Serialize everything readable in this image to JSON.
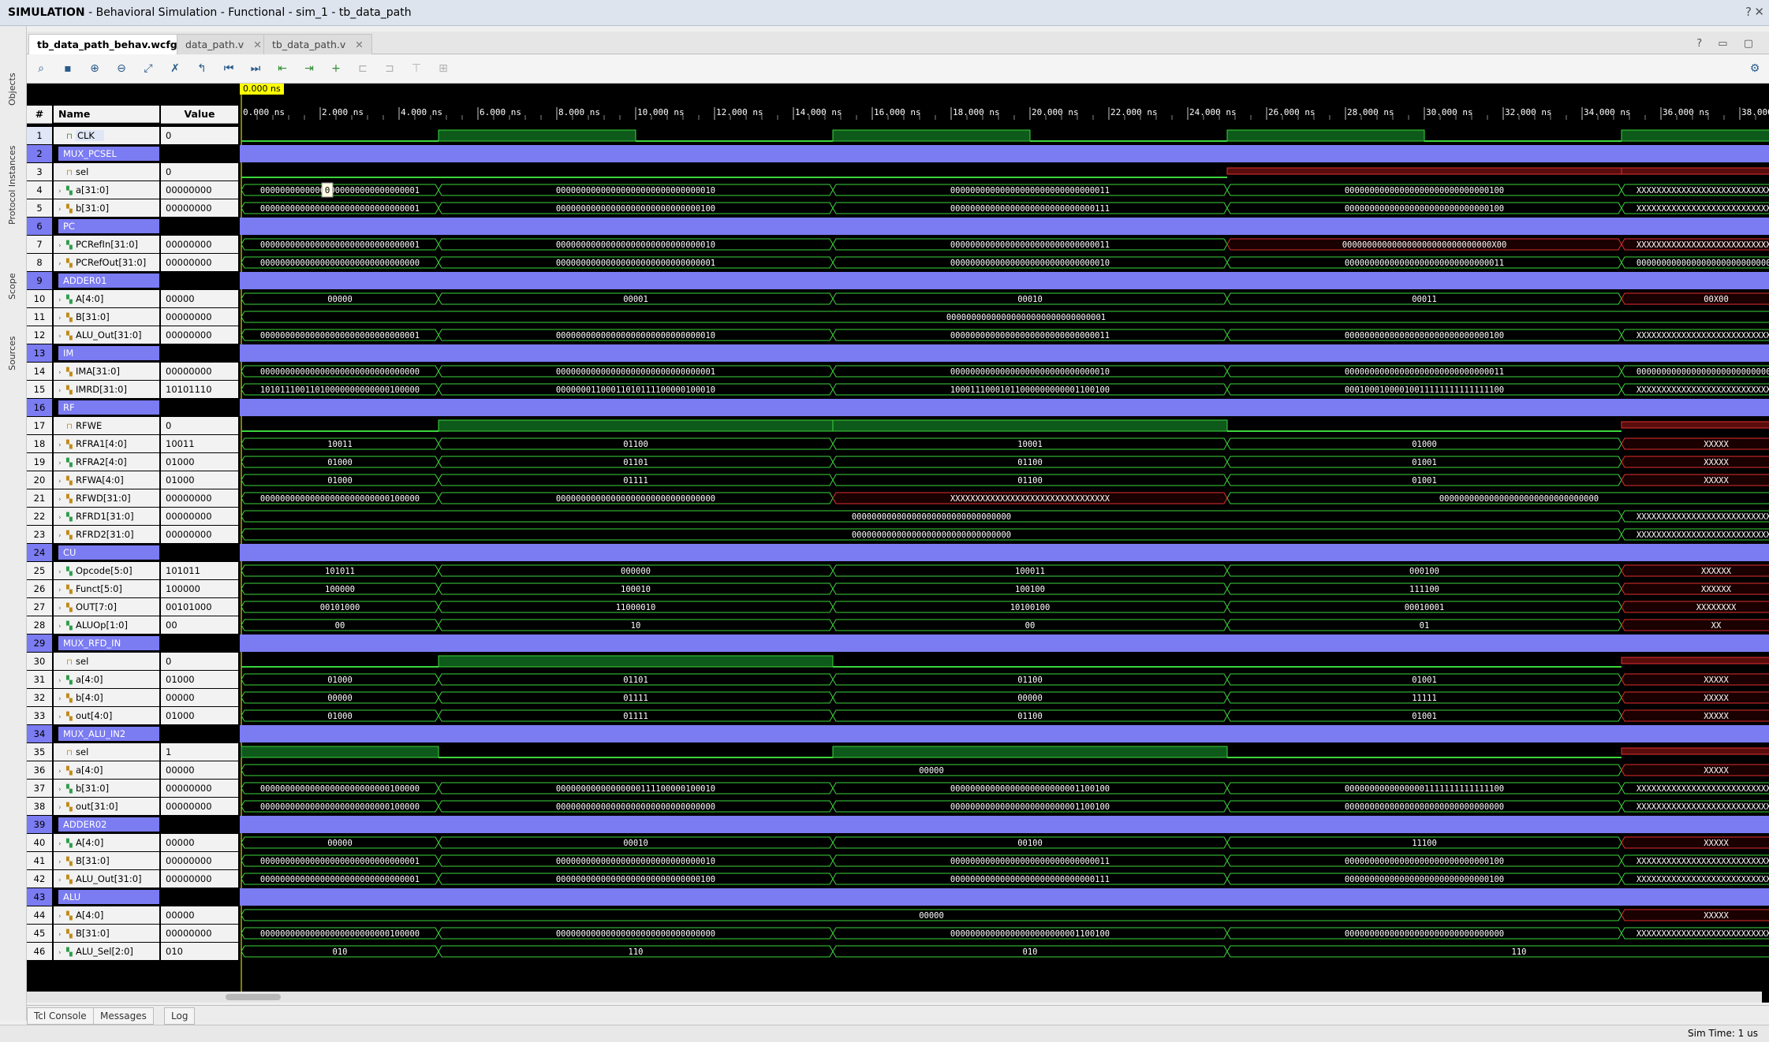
{
  "window": {
    "title_bold": "SIMULATION",
    "title_rest": " - Behavioral Simulation - Functional - sim_1 - tb_data_path",
    "help": "?",
    "close": "✕"
  },
  "sidebar": [
    "Objects",
    "Protocol Instances",
    "Scope",
    "Sources"
  ],
  "tabs": [
    {
      "label": "tb_data_path_behav.wcfg*",
      "active": true
    },
    {
      "label": "data_path.v",
      "active": false
    },
    {
      "label": "tb_data_path.v",
      "active": false
    }
  ],
  "tab_controls": "? ▭ ▢",
  "toolbar": {
    "icons": [
      "search-icon",
      "save-icon",
      "zoom-in-icon",
      "zoom-out-icon",
      "zoom-fit-icon",
      "cursor-swap-icon",
      "go-to-cursor-icon",
      "go-to-start-icon",
      "go-to-end-icon",
      "previous-transition-icon",
      "next-transition-icon",
      "add-marker-icon",
      "previous-marker-icon",
      "next-marker-icon",
      "swap-cursors-icon",
      "snap-icon"
    ],
    "gear": "⚙"
  },
  "headers": {
    "idx": "#",
    "name": "Name",
    "value": "Value"
  },
  "cursor_label": "0.000 ns",
  "timeline": {
    "ticks": [
      "0.000 ns",
      "2.000 ns",
      "4.000 ns",
      "6.000 ns",
      "8.000 ns",
      "10.000 ns",
      "12.000 ns",
      "14.000 ns",
      "16.000 ns",
      "18.000 ns",
      "20.000 ns",
      "22.000 ns",
      "24.000 ns",
      "26.000 ns",
      "28.000 ns",
      "30.000 ns",
      "32.000 ns",
      "34.000 ns",
      "36.000 ns",
      "38.000"
    ],
    "end_ns": 39,
    "period_ns": 20,
    "change_ns": [
      5,
      15,
      25,
      35
    ]
  },
  "tooltip": "0",
  "signals": [
    {
      "n": "1",
      "name": "CLK",
      "value": "0",
      "kind": "clk",
      "sel": true
    },
    {
      "n": "2",
      "name": "MUX_PCSEL",
      "value": "",
      "kind": "group"
    },
    {
      "n": "3",
      "name": "sel",
      "value": "0",
      "kind": "bit",
      "segs": [
        0,
        0,
        0,
        "r"
      ]
    },
    {
      "n": "4",
      "name": "a[31:0]",
      "value": "00000000",
      "kind": "bus",
      "segs": [
        "00000000000000000000000000000001",
        "00000000000000000000000000000010",
        "00000000000000000000000000000011",
        "00000000000000000000000000000100",
        "XXXXXXXXXXXXXXXXXXXXXXXXXXXXXXXX"
      ]
    },
    {
      "n": "5",
      "name": "b[31:0]",
      "value": "00000000",
      "kind": "bus",
      "segs": [
        "00000000000000000000000000000001",
        "00000000000000000000000000000100",
        "00000000000000000000000000000111",
        "00000000000000000000000000000100",
        "XXXXXXXXXXXXXXXXXXXXXXXXXXXXXXXX"
      ]
    },
    {
      "n": "6",
      "name": "PC",
      "value": "",
      "kind": "group"
    },
    {
      "n": "7",
      "name": "PCRefIn[31:0]",
      "value": "00000000",
      "kind": "bus",
      "segs": [
        "00000000000000000000000000000001",
        "00000000000000000000000000000010",
        "00000000000000000000000000000011",
        "000000000000000000000000000000X00",
        "XXXXXXXXXXXXXXXXXXXXXXXXXXXXXXXX"
      ],
      "red": [
        3,
        4
      ]
    },
    {
      "n": "8",
      "name": "PCRefOut[31:0]",
      "value": "00000000",
      "kind": "bus",
      "segs": [
        "00000000000000000000000000000000",
        "00000000000000000000000000000001",
        "00000000000000000000000000000010",
        "00000000000000000000000000000011",
        "00000000000000000000000000000000"
      ]
    },
    {
      "n": "9",
      "name": "ADDER01",
      "value": "",
      "kind": "group"
    },
    {
      "n": "10",
      "name": "A[4:0]",
      "value": "00000",
      "kind": "bus",
      "segs": [
        "00000",
        "00001",
        "00010",
        "00011",
        "00X00"
      ],
      "red": [
        4
      ]
    },
    {
      "n": "11",
      "name": "B[31:0]",
      "value": "00000000",
      "kind": "const",
      "text": "00000000000000000000000000000001"
    },
    {
      "n": "12",
      "name": "ALU_Out[31:0]",
      "value": "00000000",
      "kind": "bus",
      "segs": [
        "00000000000000000000000000000001",
        "00000000000000000000000000000010",
        "00000000000000000000000000000011",
        "00000000000000000000000000000100",
        "XXXXXXXXXXXXXXXXXXXXXXXXXXXXXXXX"
      ]
    },
    {
      "n": "13",
      "name": "IM",
      "value": "",
      "kind": "group"
    },
    {
      "n": "14",
      "name": "IMA[31:0]",
      "value": "00000000",
      "kind": "bus",
      "segs": [
        "00000000000000000000000000000000",
        "00000000000000000000000000000001",
        "00000000000000000000000000000010",
        "00000000000000000000000000000011",
        "00000000000000000000000000000000"
      ]
    },
    {
      "n": "15",
      "name": "IMRD[31:0]",
      "value": "10101110",
      "kind": "bus",
      "segs": [
        "10101110011010000000000000100000",
        "00000001100011010111100000100010",
        "10001110001011000000000001100100",
        "00010001000010011111111111111100",
        "XXXXXXXXXXXXXXXXXXXXXXXXXXXXXXXX"
      ]
    },
    {
      "n": "16",
      "name": "RF",
      "value": "",
      "kind": "group"
    },
    {
      "n": "17",
      "name": "RFWE",
      "value": "0",
      "kind": "bit",
      "segs": [
        0,
        1,
        1,
        0,
        "r"
      ]
    },
    {
      "n": "18",
      "name": "RFRA1[4:0]",
      "value": "10011",
      "kind": "bus",
      "segs": [
        "10011",
        "01100",
        "10001",
        "01000",
        "XXXXX"
      ],
      "red": [
        4
      ]
    },
    {
      "n": "19",
      "name": "RFRA2[4:0]",
      "value": "01000",
      "kind": "bus",
      "segs": [
        "01000",
        "01101",
        "01100",
        "01001",
        "XXXXX"
      ],
      "red": [
        4
      ]
    },
    {
      "n": "20",
      "name": "RFWA[4:0]",
      "value": "01000",
      "kind": "bus",
      "segs": [
        "01000",
        "01111",
        "01100",
        "01001",
        "XXXXX"
      ],
      "red": [
        4
      ]
    },
    {
      "n": "21",
      "name": "RFWD[31:0]",
      "value": "00000000",
      "kind": "bus",
      "segs": [
        "00000000000000000000000000100000",
        "00000000000000000000000000000000",
        "XXXXXXXXXXXXXXXXXXXXXXXXXXXXXXXX",
        "00000000000000000000000000000000",
        ""
      ],
      "red": [
        2
      ],
      "merge45": true
    },
    {
      "n": "22",
      "name": "RFRD1[31:0]",
      "value": "00000000",
      "kind": "bus4",
      "text": "00000000000000000000000000000000",
      "tail": "XXXXXXXXXXXXXXXXXXXXXXXXXXXXXXXX"
    },
    {
      "n": "23",
      "name": "RFRD2[31:0]",
      "value": "00000000",
      "kind": "bus4",
      "text": "00000000000000000000000000000000",
      "tail": "XXXXXXXXXXXXXXXXXXXXXXXXXXXXXXXX"
    },
    {
      "n": "24",
      "name": "CU",
      "value": "",
      "kind": "group"
    },
    {
      "n": "25",
      "name": "Opcode[5:0]",
      "value": "101011",
      "kind": "bus",
      "segs": [
        "101011",
        "000000",
        "100011",
        "000100",
        "XXXXXX"
      ],
      "red": [
        4
      ]
    },
    {
      "n": "26",
      "name": "Funct[5:0]",
      "value": "100000",
      "kind": "bus",
      "segs": [
        "100000",
        "100010",
        "100100",
        "111100",
        "XXXXXX"
      ],
      "red": [
        4
      ]
    },
    {
      "n": "27",
      "name": "OUT[7:0]",
      "value": "00101000",
      "kind": "bus",
      "segs": [
        "00101000",
        "11000010",
        "10100100",
        "00010001",
        "XXXXXXXX"
      ],
      "red": [
        4
      ]
    },
    {
      "n": "28",
      "name": "ALUOp[1:0]",
      "value": "00",
      "kind": "bus",
      "segs": [
        "00",
        "10",
        "00",
        "01",
        "XX"
      ],
      "red": [
        4
      ]
    },
    {
      "n": "29",
      "name": "MUX_RFD_IN",
      "value": "",
      "kind": "group"
    },
    {
      "n": "30",
      "name": "sel",
      "value": "0",
      "kind": "bit",
      "segs": [
        0,
        1,
        0,
        0,
        "r"
      ]
    },
    {
      "n": "31",
      "name": "a[4:0]",
      "value": "01000",
      "kind": "bus",
      "segs": [
        "01000",
        "01101",
        "01100",
        "01001",
        "XXXXX"
      ],
      "red": [
        4
      ]
    },
    {
      "n": "32",
      "name": "b[4:0]",
      "value": "00000",
      "kind": "bus",
      "segs": [
        "00000",
        "01111",
        "00000",
        "11111",
        "XXXXX"
      ],
      "red": [
        4
      ]
    },
    {
      "n": "33",
      "name": "out[4:0]",
      "value": "01000",
      "kind": "bus",
      "segs": [
        "01000",
        "01111",
        "01100",
        "01001",
        "XXXXX"
      ],
      "red": [
        4
      ]
    },
    {
      "n": "34",
      "name": "MUX_ALU_IN2",
      "value": "",
      "kind": "group"
    },
    {
      "n": "35",
      "name": "sel",
      "value": "1",
      "kind": "bit",
      "segs": [
        1,
        0,
        1,
        0,
        "r"
      ]
    },
    {
      "n": "36",
      "name": "a[4:0]",
      "value": "00000",
      "kind": "bus4",
      "text": "00000",
      "tail": "XXXXX",
      "redtail": true
    },
    {
      "n": "37",
      "name": "b[31:0]",
      "value": "00000000",
      "kind": "bus",
      "segs": [
        "00000000000000000000000000100000",
        "00000000000000000111100000100010",
        "00000000000000000000000001100100",
        "00000000000000001111111111111100",
        "XXXXXXXXXXXXXXXXXXXXXXXXXXXXXXXX"
      ]
    },
    {
      "n": "38",
      "name": "out[31:0]",
      "value": "00000000",
      "kind": "bus",
      "segs": [
        "00000000000000000000000000100000",
        "00000000000000000000000000000000",
        "00000000000000000000000001100100",
        "00000000000000000000000000000000",
        "XXXXXXXXXXXXXXXXXXXXXXXXXXXXXXXX"
      ]
    },
    {
      "n": "39",
      "name": "ADDER02",
      "value": "",
      "kind": "group"
    },
    {
      "n": "40",
      "name": "A[4:0]",
      "value": "00000",
      "kind": "bus",
      "segs": [
        "00000",
        "00010",
        "00100",
        "11100",
        "XXXXX"
      ],
      "red": [
        4
      ]
    },
    {
      "n": "41",
      "name": "B[31:0]",
      "value": "00000000",
      "kind": "bus",
      "segs": [
        "00000000000000000000000000000001",
        "00000000000000000000000000000010",
        "00000000000000000000000000000011",
        "00000000000000000000000000000100",
        "XXXXXXXXXXXXXXXXXXXXXXXXXXXXXXXX"
      ]
    },
    {
      "n": "42",
      "name": "ALU_Out[31:0]",
      "value": "00000000",
      "kind": "bus",
      "segs": [
        "00000000000000000000000000000001",
        "00000000000000000000000000000100",
        "00000000000000000000000000000111",
        "00000000000000000000000000000100",
        "XXXXXXXXXXXXXXXXXXXXXXXXXXXXXXXX"
      ]
    },
    {
      "n": "43",
      "name": "ALU",
      "value": "",
      "kind": "group"
    },
    {
      "n": "44",
      "name": "A[4:0]",
      "value": "00000",
      "kind": "bus4",
      "text": "00000",
      "tail": "XXXXX",
      "redtail": true
    },
    {
      "n": "45",
      "name": "B[31:0]",
      "value": "00000000",
      "kind": "bus",
      "segs": [
        "00000000000000000000000000100000",
        "00000000000000000000000000000000",
        "00000000000000000000000001100100",
        "00000000000000000000000000000000",
        "XXXXXXXXXXXXXXXXXXXXXXXXXXXXXXXX"
      ]
    },
    {
      "n": "46",
      "name": "ALU_Sel[2:0]",
      "value": "010",
      "kind": "bus",
      "segs": [
        "010",
        "110",
        "010",
        "110",
        ""
      ],
      "merge45": true
    }
  ],
  "bottom_tabs": [
    "Tcl Console",
    "Messages",
    "Log"
  ],
  "status": "Sim Time: 1 us"
}
